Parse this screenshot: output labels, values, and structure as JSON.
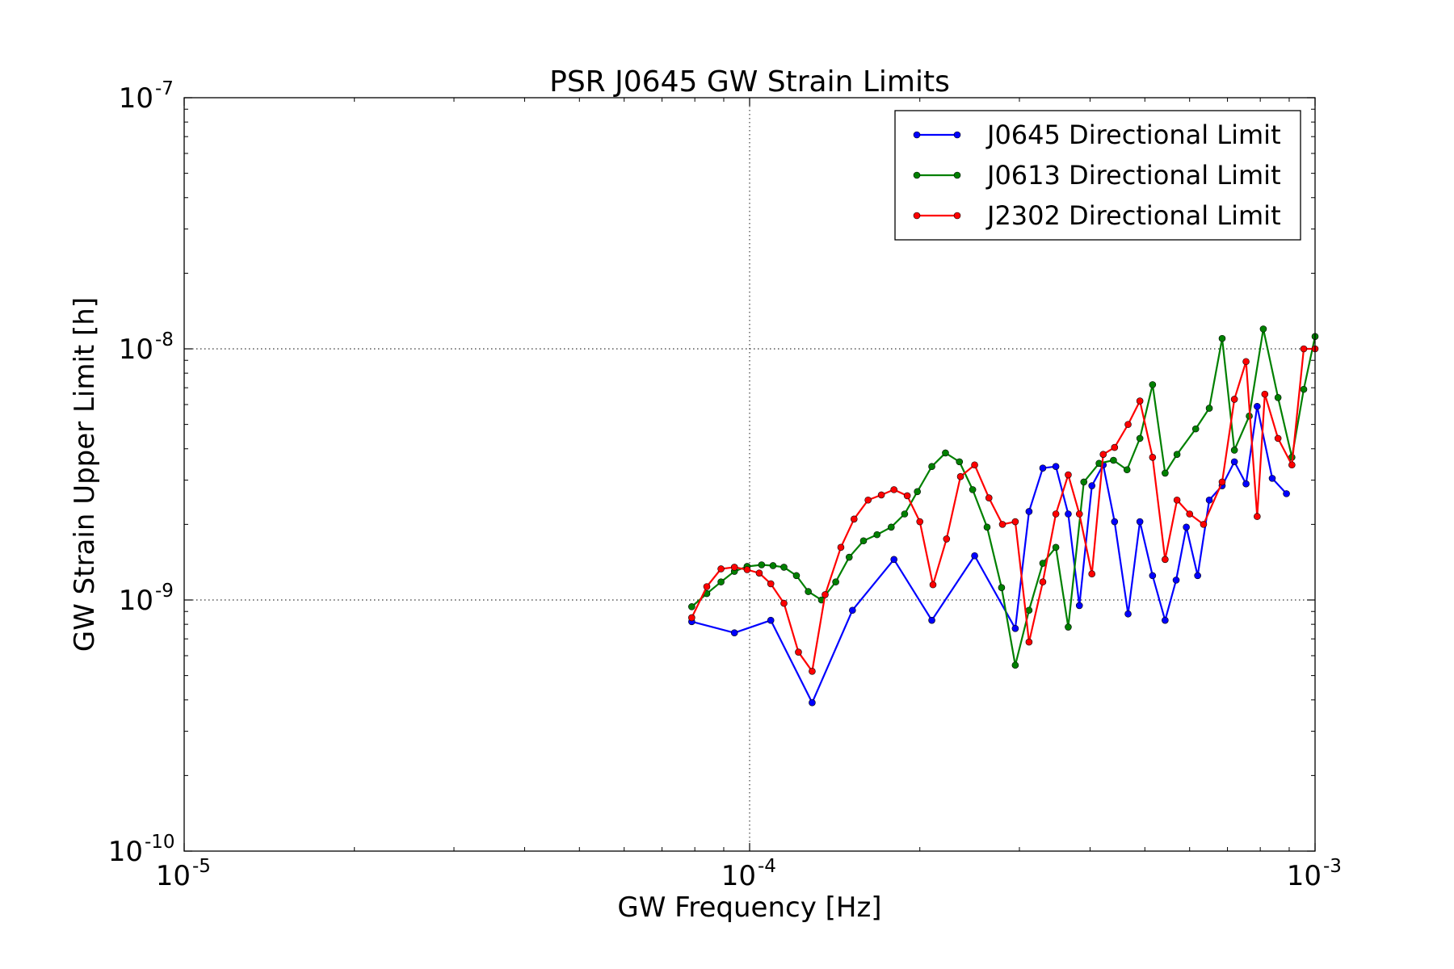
{
  "chart_data": {
    "type": "line",
    "title": "PSR J0645 GW Strain Limits",
    "xlabel": "GW Frequency [Hz]",
    "ylabel": "GW Strain Upper Limit [h]",
    "xscale": "log",
    "yscale": "log",
    "xlim": [
      1e-05,
      0.001
    ],
    "ylim": [
      1e-10,
      1e-07
    ],
    "grid": true,
    "legend_position": "top-right",
    "x_ticks": [
      {
        "value": 1e-05,
        "base": "10",
        "exp": "-5"
      },
      {
        "value": 0.0001,
        "base": "10",
        "exp": "-4"
      },
      {
        "value": 0.001,
        "base": "10",
        "exp": "-3"
      }
    ],
    "y_ticks": [
      {
        "value": 1e-10,
        "base": "10",
        "exp": "-10"
      },
      {
        "value": 1e-09,
        "base": "10",
        "exp": "-9"
      },
      {
        "value": 1e-08,
        "base": "10",
        "exp": "-8"
      },
      {
        "value": 1e-07,
        "base": "10",
        "exp": "-7"
      }
    ],
    "series": [
      {
        "name": "J0645 Directional Limit",
        "color": "#0000ff",
        "x": [
          7.9e-05,
          9.4e-05,
          0.000109,
          0.000129,
          0.000152,
          0.00018,
          0.00021,
          0.00025,
          0.000295,
          0.000312,
          0.00033,
          0.000348,
          0.000366,
          0.000383,
          0.000403,
          0.000422,
          0.000442,
          0.000467,
          0.00049,
          0.000516,
          0.000543,
          0.000568,
          0.000592,
          0.00062,
          0.00065,
          0.000685,
          0.00072,
          0.000755,
          0.00079,
          0.00084,
          0.00089
        ],
        "y": [
          8.2e-10,
          7.4e-10,
          8.3e-10,
          3.9e-10,
          9.1e-10,
          1.45e-09,
          8.3e-10,
          1.5e-09,
          7.7e-10,
          2.25e-09,
          3.35e-09,
          3.4e-09,
          2.2e-09,
          9.5e-10,
          2.85e-09,
          3.45e-09,
          2.05e-09,
          8.8e-10,
          2.05e-09,
          1.25e-09,
          8.3e-10,
          1.2e-09,
          1.95e-09,
          1.25e-09,
          2.5e-09,
          2.85e-09,
          3.55e-09,
          2.9e-09,
          5.9e-09,
          3.05e-09,
          2.65e-09
        ]
      },
      {
        "name": "J0613 Directional Limit",
        "color": "#008000",
        "x": [
          7.9e-05,
          8.4e-05,
          8.9e-05,
          9.4e-05,
          9.9e-05,
          0.000105,
          0.00011,
          0.000115,
          0.000121,
          0.000127,
          0.000134,
          0.000142,
          0.00015,
          0.000159,
          0.000168,
          0.000178,
          0.000188,
          0.000198,
          0.00021,
          0.000222,
          0.000235,
          0.000248,
          0.000263,
          0.000279,
          0.000295,
          0.000312,
          0.00033,
          0.000348,
          0.000366,
          0.00039,
          0.000415,
          0.00044,
          0.000465,
          0.00049,
          0.000516,
          0.000543,
          0.00057,
          0.000615,
          0.00065,
          0.000685,
          0.00072,
          0.000765,
          0.00081,
          0.00086,
          0.00091,
          0.000955,
          0.001
        ],
        "y": [
          9.4e-10,
          1.06e-09,
          1.18e-09,
          1.3e-09,
          1.36e-09,
          1.38e-09,
          1.37e-09,
          1.35e-09,
          1.25e-09,
          1.08e-09,
          1e-09,
          1.18e-09,
          1.48e-09,
          1.72e-09,
          1.82e-09,
          1.95e-09,
          2.2e-09,
          2.7e-09,
          3.4e-09,
          3.85e-09,
          3.55e-09,
          2.75e-09,
          1.95e-09,
          1.12e-09,
          5.5e-10,
          9.1e-10,
          1.4e-09,
          1.62e-09,
          7.8e-10,
          2.95e-09,
          3.5e-09,
          3.6e-09,
          3.3e-09,
          4.4e-09,
          7.2e-09,
          3.2e-09,
          3.8e-09,
          4.8e-09,
          5.8e-09,
          1.1e-08,
          3.95e-09,
          5.4e-09,
          1.2e-08,
          6.4e-09,
          3.7e-09,
          6.9e-09,
          1.12e-08
        ]
      },
      {
        "name": "J2302 Directional Limit",
        "color": "#ff0000",
        "x": [
          7.9e-05,
          8.4e-05,
          8.9e-05,
          9.4e-05,
          9.9e-05,
          0.000104,
          0.000109,
          0.000115,
          0.000122,
          0.000129,
          0.000136,
          0.000145,
          0.000153,
          0.000162,
          0.000171,
          0.00018,
          0.00019,
          0.0002,
          0.000211,
          0.000223,
          0.000236,
          0.00025,
          0.000265,
          0.00028,
          0.000295,
          0.000312,
          0.00033,
          0.000348,
          0.000366,
          0.000383,
          0.000403,
          0.000422,
          0.000442,
          0.000467,
          0.00049,
          0.000516,
          0.000543,
          0.00057,
          0.0006,
          0.000635,
          0.000685,
          0.00072,
          0.000755,
          0.00079,
          0.000815,
          0.00086,
          0.00091,
          0.000955,
          0.001
        ],
        "y": [
          8.5e-10,
          1.13e-09,
          1.33e-09,
          1.35e-09,
          1.32e-09,
          1.28e-09,
          1.16e-09,
          9.7e-10,
          6.2e-10,
          5.2e-10,
          1.05e-09,
          1.62e-09,
          2.1e-09,
          2.5e-09,
          2.62e-09,
          2.75e-09,
          2.6e-09,
          2.05e-09,
          1.15e-09,
          1.75e-09,
          3.1e-09,
          3.45e-09,
          2.55e-09,
          2e-09,
          2.05e-09,
          6.8e-10,
          1.18e-09,
          2.2e-09,
          3.15e-09,
          2.2e-09,
          1.27e-09,
          3.8e-09,
          4.05e-09,
          5e-09,
          6.2e-09,
          3.7e-09,
          1.45e-09,
          2.5e-09,
          2.2e-09,
          2e-09,
          2.95e-09,
          6.3e-09,
          8.9e-09,
          2.15e-09,
          6.6e-09,
          4.4e-09,
          3.45e-09,
          1e-08,
          1e-08
        ]
      }
    ]
  }
}
